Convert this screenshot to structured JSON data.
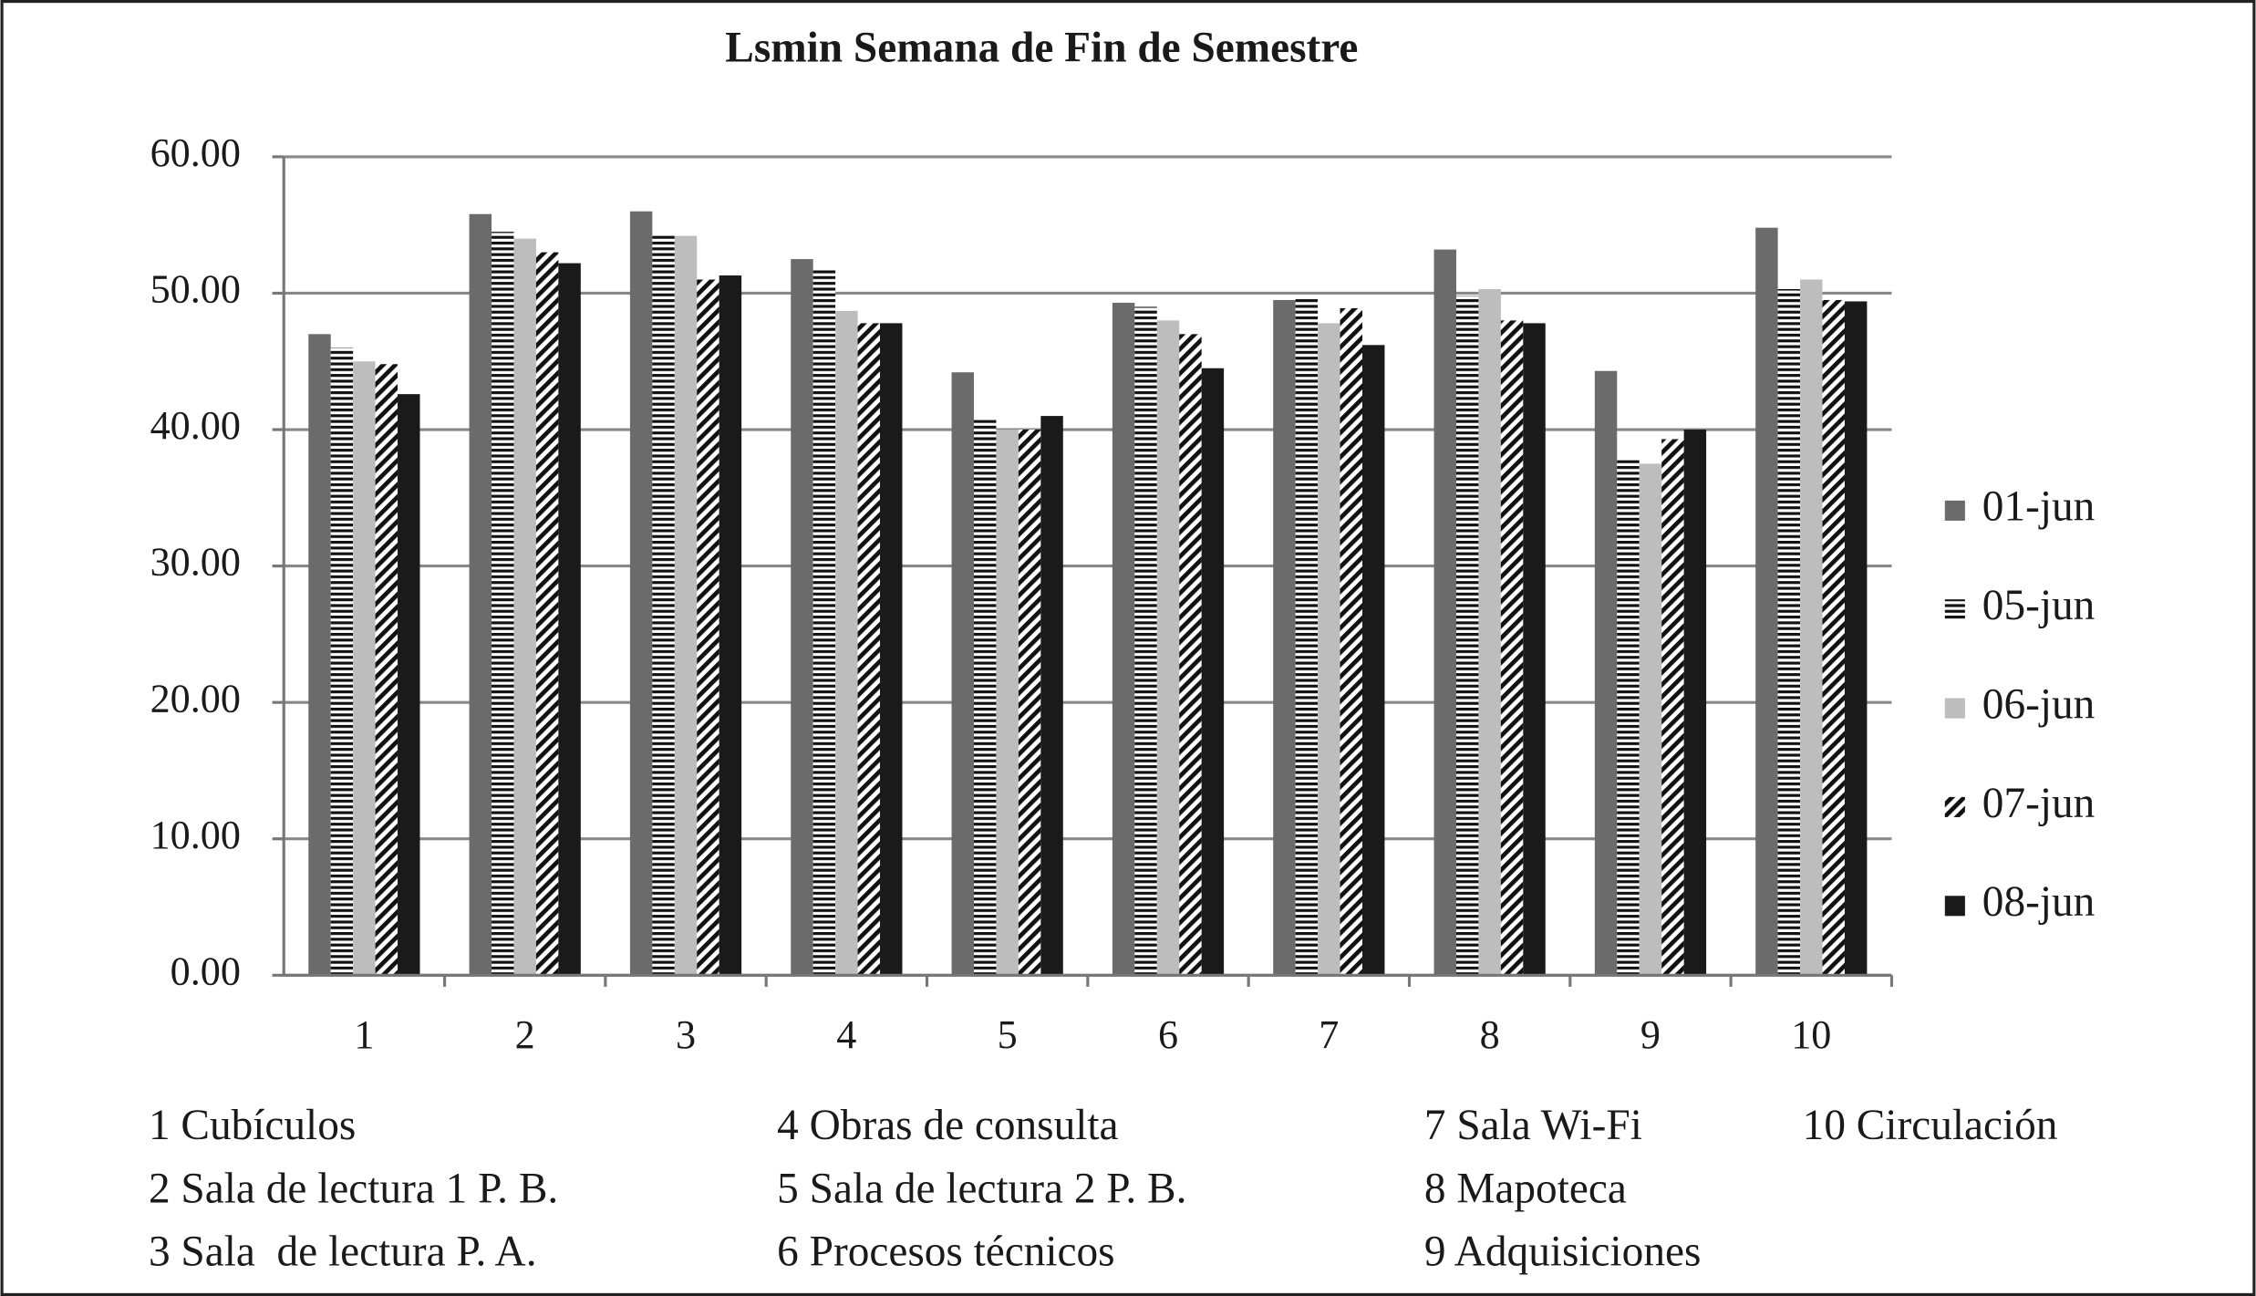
{
  "chart_data": {
    "type": "bar",
    "title": "Lsmin Semana de Fin de Semestre",
    "categories": [
      "1",
      "2",
      "3",
      "4",
      "5",
      "6",
      "7",
      "8",
      "9",
      "10"
    ],
    "series": [
      {
        "name": "01-jun",
        "color": "#6b6b6b",
        "pattern": "solid",
        "values": [
          47.0,
          55.8,
          56.0,
          52.5,
          44.2,
          49.3,
          49.5,
          53.2,
          44.3,
          54.8
        ]
      },
      {
        "name": "05-jun",
        "color": "#111111",
        "pattern": "horizontal-lines",
        "values": [
          46.0,
          54.5,
          54.3,
          51.8,
          40.7,
          49.0,
          49.6,
          49.8,
          37.8,
          50.3
        ]
      },
      {
        "name": "06-jun",
        "color": "#bdbdbd",
        "pattern": "solid",
        "values": [
          45.0,
          54.0,
          54.2,
          48.7,
          40.0,
          48.0,
          47.8,
          50.3,
          37.5,
          51.0
        ]
      },
      {
        "name": "07-jun",
        "color": "#111111",
        "pattern": "diagonal-lines",
        "values": [
          44.8,
          53.0,
          51.0,
          47.8,
          40.0,
          47.0,
          48.9,
          48.0,
          39.3,
          49.5
        ]
      },
      {
        "name": "08-jun",
        "color": "#1a1a1a",
        "pattern": "solid",
        "values": [
          42.6,
          52.2,
          51.3,
          47.8,
          41.0,
          44.5,
          46.2,
          47.8,
          40.0,
          49.4
        ]
      }
    ],
    "ylim": [
      0,
      60
    ],
    "yticks": [
      {
        "value": 0,
        "label": "0.00"
      },
      {
        "value": 10,
        "label": "10.00"
      },
      {
        "value": 20,
        "label": "20.00"
      },
      {
        "value": 30,
        "label": "30.00"
      },
      {
        "value": 40,
        "label": "40.00"
      },
      {
        "value": 50,
        "label": "50.00"
      },
      {
        "value": 60,
        "label": "60.00"
      }
    ],
    "grid": true,
    "legend": "right",
    "notes": [
      "1 Cubículos",
      "2 Sala de lectura 1 P. B.",
      "3 Sala  de lectura P. A.",
      "4 Obras de consulta",
      "5 Sala de lectura 2 P. B.",
      "6 Procesos técnicos",
      "7 Sala Wi-Fi",
      "8 Mapoteca",
      "9 Adquisiciones",
      "10 Circulación"
    ]
  }
}
